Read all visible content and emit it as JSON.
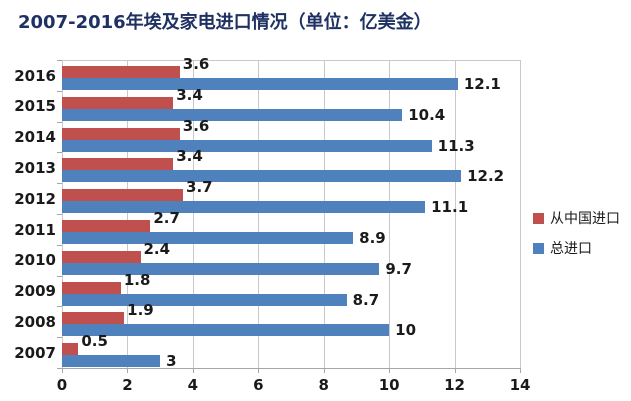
{
  "chart_data": {
    "type": "bar",
    "orientation": "horizontal",
    "title": "2007-2016年埃及家电进口情况（单位：亿美金）",
    "categories": [
      "2016",
      "2015",
      "2014",
      "2013",
      "2012",
      "2011",
      "2010",
      "2009",
      "2008",
      "2007"
    ],
    "series": [
      {
        "name": "从中国进口",
        "color": "#C0504D",
        "values": [
          3.6,
          3.4,
          3.6,
          3.4,
          3.7,
          2.7,
          2.4,
          1.8,
          1.9,
          0.5
        ]
      },
      {
        "name": "总进口",
        "color": "#4F81BD",
        "values": [
          12.1,
          10.4,
          11.3,
          12.2,
          11.1,
          8.9,
          9.7,
          8.7,
          10,
          3
        ]
      }
    ],
    "xlim": [
      0,
      14
    ],
    "xticks": [
      0,
      2,
      4,
      6,
      8,
      10,
      12,
      14
    ],
    "grid": true,
    "data_labels": true,
    "legend_position": "right"
  },
  "colors": {
    "title": "#1F3162",
    "gridline": "#C9C9C9",
    "axis": "#A6A6A6",
    "text": "#1A1A1A"
  }
}
